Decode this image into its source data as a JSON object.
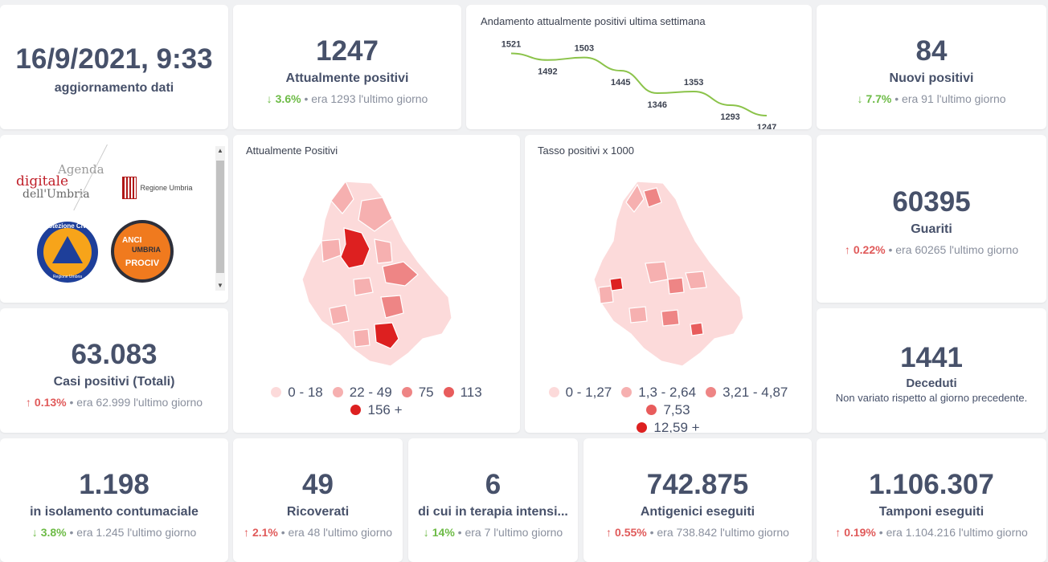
{
  "update": {
    "datetime": "16/9/2021, 9:33",
    "label": "aggiornamento dati"
  },
  "current_positive": {
    "value": "1247",
    "label": "Attualmente positivi",
    "pct": "3.6%",
    "dir": "down",
    "sep": "•",
    "prev": "era 1293",
    "suffix": "l'ultimo giorno"
  },
  "weekly_chart": {
    "chart_data": {
      "type": "line",
      "title": "Andamento attualmente positivi ultima settimana",
      "xlabel": "",
      "ylabel": "",
      "values": [
        1521,
        1492,
        1503,
        1445,
        1346,
        1353,
        1293,
        1247
      ],
      "value_labels": [
        "1521",
        "1492",
        "1503",
        "1445",
        "1346",
        "1353",
        "1293",
        "1247"
      ],
      "line_color": "#8bc34a"
    }
  },
  "new_positive": {
    "value": "84",
    "label": "Nuovi positivi",
    "pct": "7.7%",
    "dir": "down",
    "sep": "•",
    "prev": "era 91",
    "suffix": "l'ultimo giorno"
  },
  "logos": {
    "agenda": {
      "line1": "Agenda",
      "line2": "digitale",
      "line3": "dell'Umbria"
    },
    "regione": {
      "text": "Regione Umbria"
    },
    "protezione": {
      "text": "Protezione Civile",
      "sub": "Regione Umbria"
    },
    "anci": {
      "top": "ANCI",
      "mid": "UMBRIA",
      "bottom": "PROCIV"
    }
  },
  "map_positive": {
    "title": "Attualmente Positivi",
    "legend": [
      {
        "label": "0 - 18",
        "color": "#fcdada"
      },
      {
        "label": "22 - 49",
        "color": "#f6b0b0"
      },
      {
        "label": "75",
        "color": "#ee8585"
      },
      {
        "label": "113",
        "color": "#e85c5c"
      },
      {
        "label": "156 +",
        "color": "#dd2020"
      }
    ]
  },
  "map_rate": {
    "title": "Tasso positivi x 1000",
    "legend": [
      {
        "label": "0 - 1,27",
        "color": "#fcdada"
      },
      {
        "label": "1,3 - 2,64",
        "color": "#f6b0b0"
      },
      {
        "label": "3,21 - 4,87",
        "color": "#ee8585"
      },
      {
        "label": "7,53",
        "color": "#e85c5c"
      },
      {
        "label": "12,59 +",
        "color": "#dd2020"
      }
    ]
  },
  "recovered": {
    "value": "60395",
    "label": "Guariti",
    "pct": "0.22%",
    "dir": "up",
    "sep": "•",
    "prev": "era 60265",
    "suffix": "l'ultimo giorno"
  },
  "total_cases": {
    "value": "63.083",
    "label": "Casi positivi (Totali)",
    "pct": "0.13%",
    "dir": "up",
    "sep": "•",
    "prev": "era 62.999",
    "suffix": "l'ultimo giorno"
  },
  "deaths": {
    "value": "1441",
    "label": "Deceduti",
    "note": "Non variato rispetto al giorno precedente."
  },
  "isolation": {
    "value": "1.198",
    "label": "in isolamento contumaciale",
    "pct": "3.8%",
    "dir": "down",
    "sep": "•",
    "prev": "era 1.245",
    "suffix": "l'ultimo giorno"
  },
  "hospitalized": {
    "value": "49",
    "label": "Ricoverati",
    "pct": "2.1%",
    "dir": "up",
    "sep": "•",
    "prev": "era 48",
    "suffix": "l'ultimo giorno"
  },
  "icu": {
    "value": "6",
    "label": "di cui in terapia intensi...",
    "pct": "14%",
    "dir": "down",
    "sep": "•",
    "prev": "era 7",
    "suffix": "l'ultimo giorno"
  },
  "antigen": {
    "value": "742.875",
    "label": "Antigenici eseguiti",
    "pct": "0.55%",
    "dir": "up",
    "sep": "•",
    "prev": "era 738.842",
    "suffix": "l'ultimo giorno"
  },
  "swabs": {
    "value": "1.106.307",
    "label": "Tamponi eseguiti",
    "pct": "0.19%",
    "dir": "up",
    "sep": "•",
    "prev": "era 1.104.216",
    "suffix": "l'ultimo giorno"
  },
  "colors": {
    "up": "#e05a5a",
    "down": "#6dbb46",
    "text": "#47516a"
  },
  "icons": {
    "up": "arrow-up-icon",
    "down": "arrow-down-icon"
  }
}
